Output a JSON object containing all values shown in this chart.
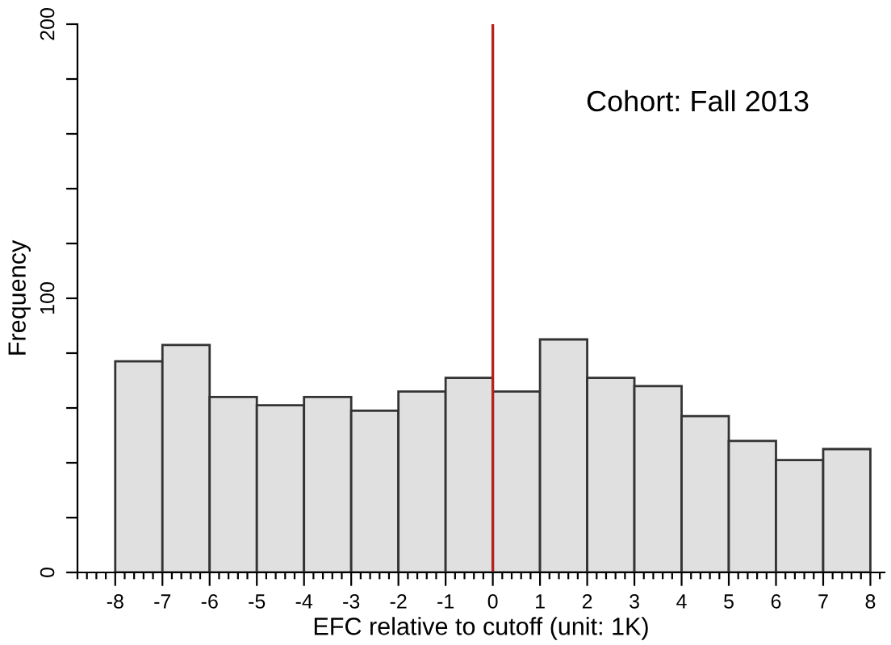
{
  "chart_data": {
    "type": "histogram",
    "xlabel": "EFC relative to cutoff (unit: 1K)",
    "ylabel": "Frequency",
    "bins": [
      -8,
      -7,
      -6,
      -5,
      -4,
      -3,
      -2,
      -1,
      0,
      1,
      2,
      3,
      4,
      5,
      6,
      7,
      8
    ],
    "values": [
      77,
      83,
      64,
      61,
      64,
      59,
      66,
      71,
      66,
      85,
      71,
      68,
      57,
      48,
      41,
      45
    ],
    "color": "#e0e0e0",
    "xlim": [
      -8.8,
      8.3
    ],
    "ylim": [
      0,
      200
    ],
    "xticks": [
      -8,
      -7,
      -6,
      -5,
      -4,
      -3,
      -2,
      -1,
      0,
      1,
      2,
      3,
      4,
      5,
      6,
      7,
      8,
      {
        "value": -8.8,
        "label": null
      },
      {
        "value": -8.6,
        "label": null
      },
      {
        "value": -8.4,
        "label": null
      },
      {
        "value": -8.2,
        "label": null
      },
      {
        "value": -7.8,
        "label": null
      },
      {
        "value": -7.6,
        "label": null
      },
      {
        "value": -7.4,
        "label": null
      },
      {
        "value": -7.2,
        "label": null
      },
      {
        "value": -6.8,
        "label": null
      },
      {
        "value": -6.6,
        "label": null
      },
      {
        "value": -6.4,
        "label": null
      },
      {
        "value": -6.2,
        "label": null
      },
      {
        "value": -5.8,
        "label": null
      },
      {
        "value": -5.6,
        "label": null
      },
      {
        "value": -5.4,
        "label": null
      },
      {
        "value": -5.2,
        "label": null
      },
      {
        "value": -4.8,
        "label": null
      },
      {
        "value": -4.6,
        "label": null
      },
      {
        "value": -4.4,
        "label": null
      },
      {
        "value": -4.2,
        "label": null
      },
      {
        "value": -3.8,
        "label": null
      },
      {
        "value": -3.6,
        "label": null
      },
      {
        "value": -3.4,
        "label": null
      },
      {
        "value": -3.2,
        "label": null
      },
      {
        "value": -2.8,
        "label": null
      },
      {
        "value": -2.6,
        "label": null
      },
      {
        "value": -2.4,
        "label": null
      },
      {
        "value": -2.2,
        "label": null
      },
      {
        "value": -1.8,
        "label": null
      },
      {
        "value": -1.6,
        "label": null
      },
      {
        "value": -1.4,
        "label": null
      },
      {
        "value": -1.2,
        "label": null
      },
      {
        "value": -0.8,
        "label": null
      },
      {
        "value": -0.6,
        "label": null
      },
      {
        "value": -0.4,
        "label": null
      },
      {
        "value": -0.2,
        "label": null
      },
      {
        "value": 0.2,
        "label": null
      },
      {
        "value": 0.4,
        "label": null
      },
      {
        "value": 0.6,
        "label": null
      },
      {
        "value": 0.8,
        "label": null
      },
      {
        "value": 1.2,
        "label": null
      },
      {
        "value": 1.4,
        "label": null
      },
      {
        "value": 1.6,
        "label": null
      },
      {
        "value": 1.8,
        "label": null
      },
      {
        "value": 2.2,
        "label": null
      },
      {
        "value": 2.4,
        "label": null
      },
      {
        "value": 2.6,
        "label": null
      },
      {
        "value": 2.8,
        "label": null
      },
      {
        "value": 3.2,
        "label": null
      },
      {
        "value": 3.4,
        "label": null
      },
      {
        "value": 3.6,
        "label": null
      },
      {
        "value": 3.8,
        "label": null
      },
      {
        "value": 4.2,
        "label": null
      },
      {
        "value": 4.4,
        "label": null
      },
      {
        "value": 4.6,
        "label": null
      },
      {
        "value": 4.8,
        "label": null
      },
      {
        "value": 5.2,
        "label": null
      },
      {
        "value": 5.4,
        "label": null
      },
      {
        "value": 5.6,
        "label": null
      },
      {
        "value": 5.8,
        "label": null
      },
      {
        "value": 6.2,
        "label": null
      },
      {
        "value": 6.4,
        "label": null
      },
      {
        "value": 6.6,
        "label": null
      },
      {
        "value": 6.8,
        "label": null
      },
      {
        "value": 7.2,
        "label": null
      },
      {
        "value": 7.4,
        "label": null
      },
      {
        "value": 7.6,
        "label": null
      },
      {
        "value": 7.8,
        "label": null
      },
      {
        "value": 8.2,
        "label": null
      }
    ],
    "yticks": [
      0,
      {
        "value": 20,
        "label": null
      },
      {
        "value": 40,
        "label": null
      },
      {
        "value": 60,
        "label": null
      },
      {
        "value": 80,
        "label": null
      },
      100,
      {
        "value": 120,
        "label": null
      },
      {
        "value": 140,
        "label": null
      },
      {
        "value": 160,
        "label": null
      },
      {
        "value": 180,
        "label": null
      },
      200
    ],
    "ref_lines": [
      {
        "axis": "x",
        "value": 0,
        "color": "#b22222"
      }
    ],
    "annotations": [
      "Cohort: Fall 2013"
    ],
    "grid": false
  }
}
